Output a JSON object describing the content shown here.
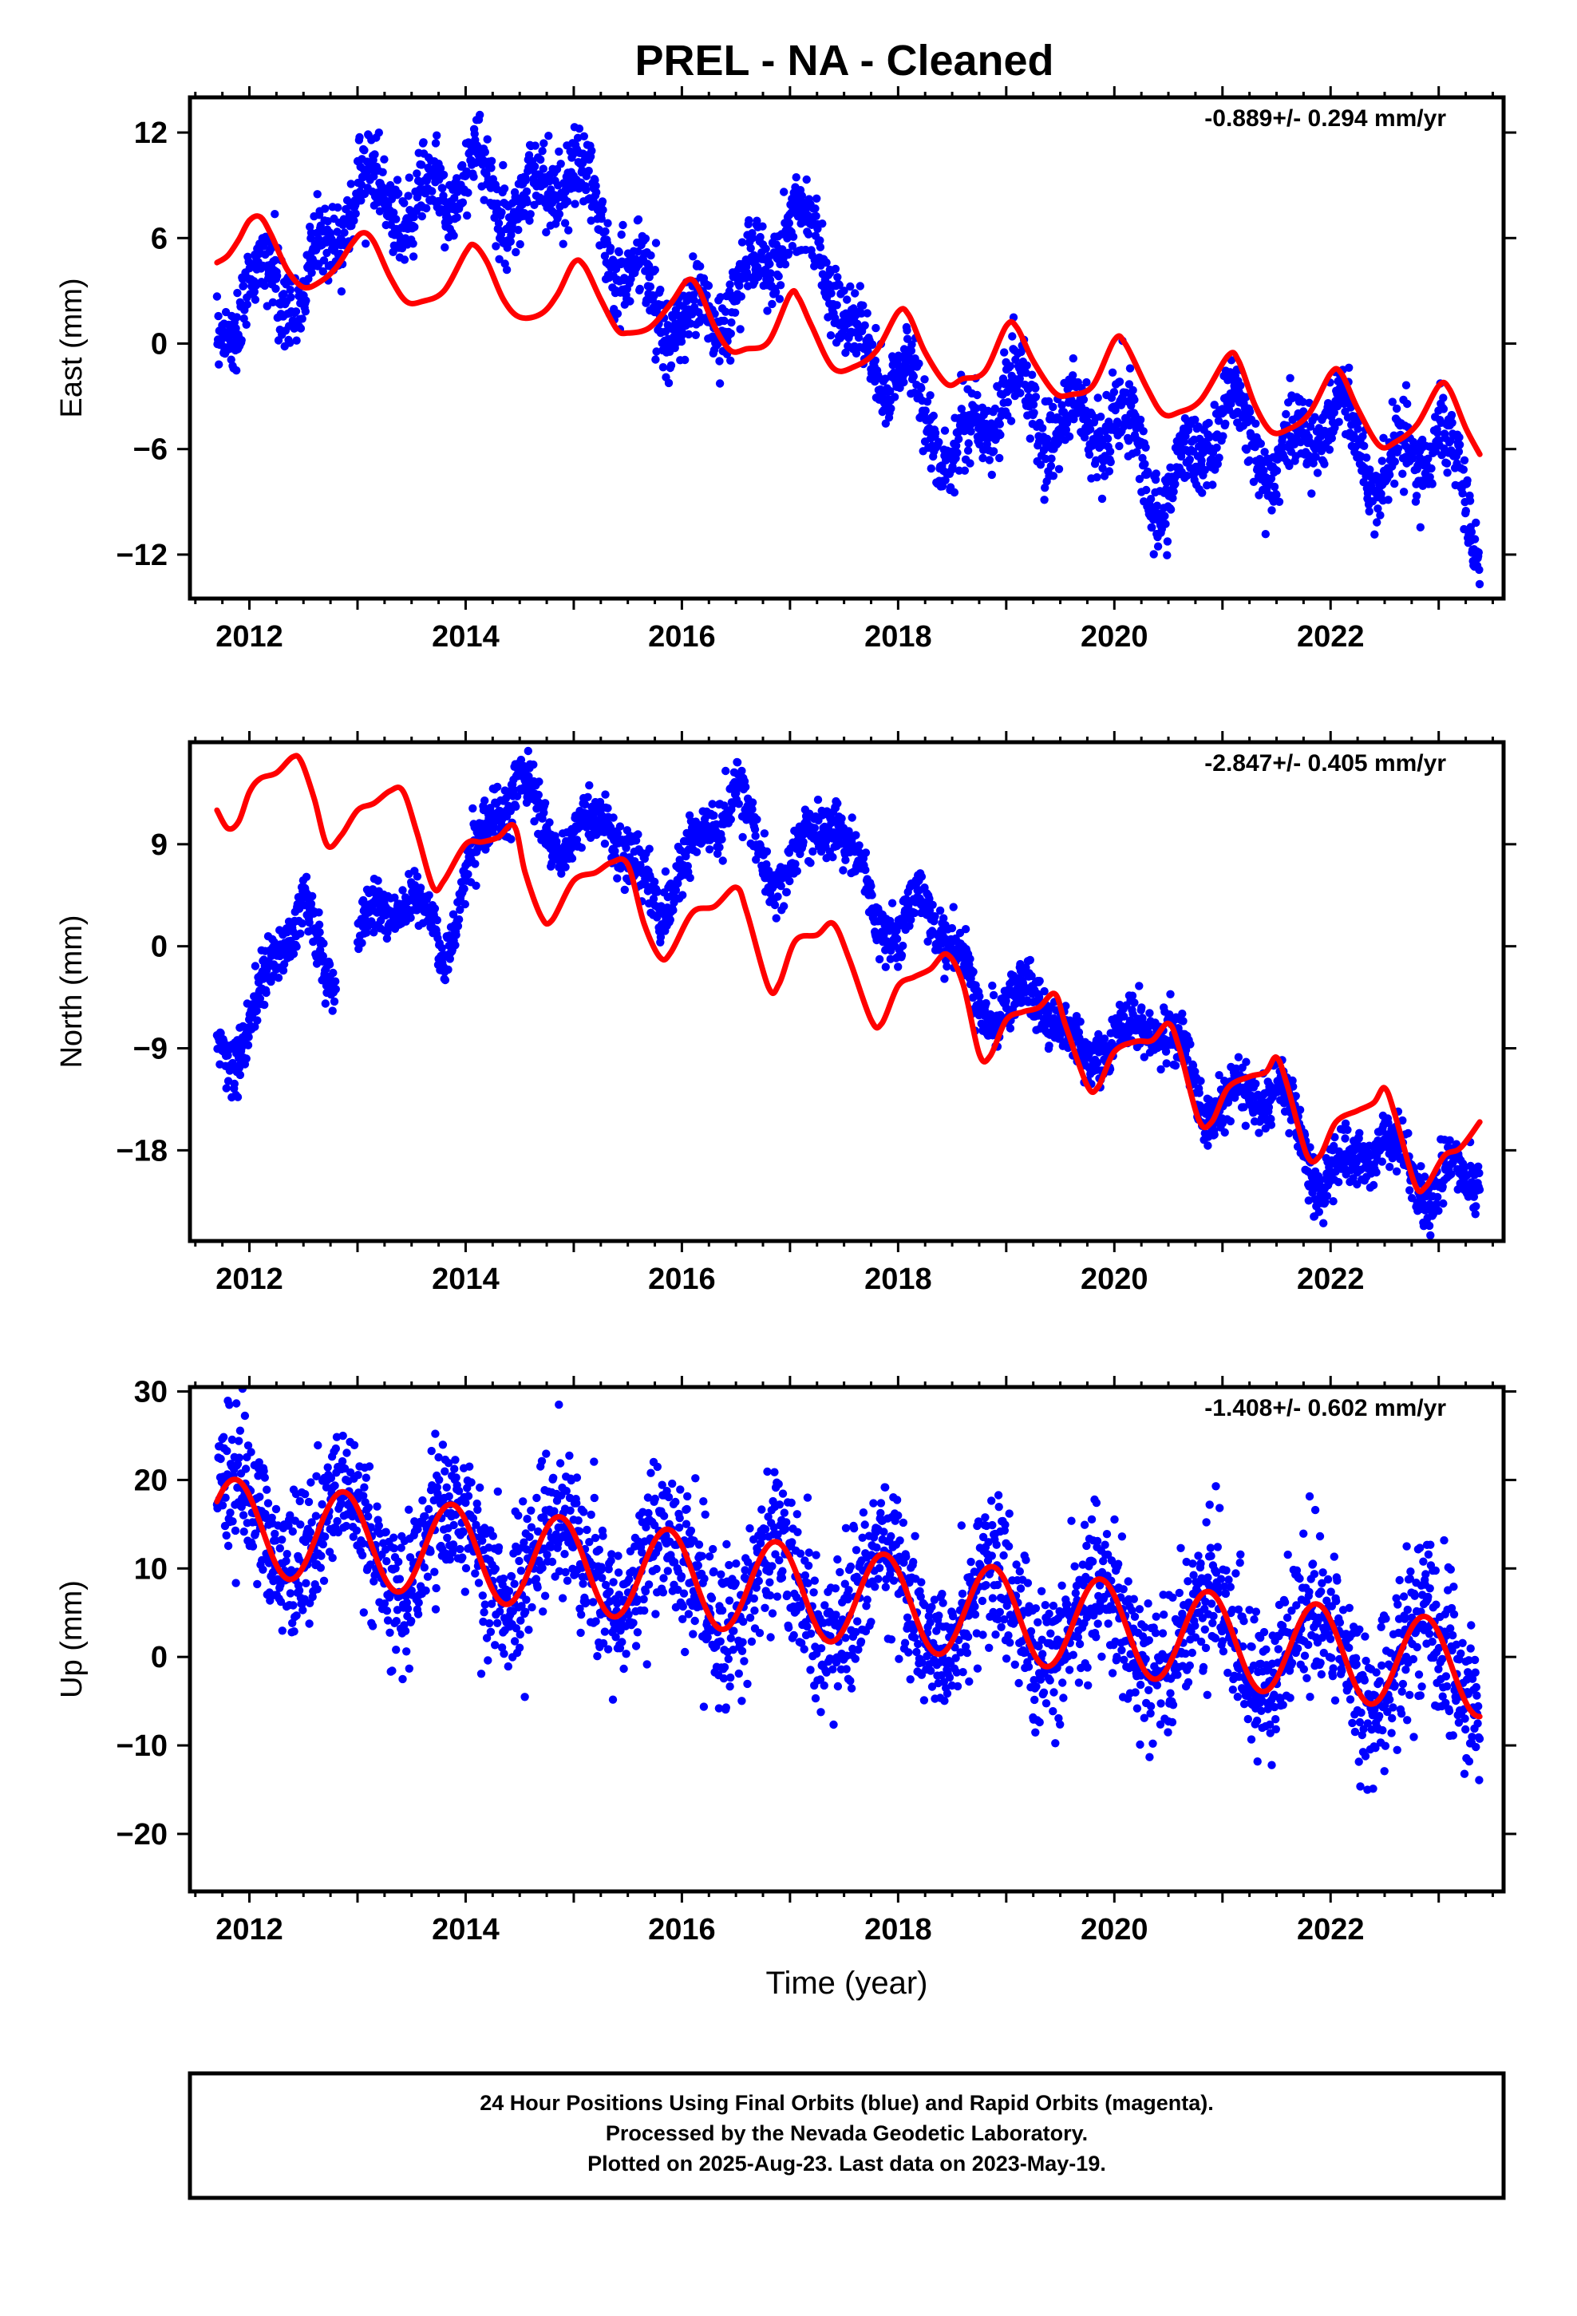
{
  "figure_title": "PREL  - NA - Cleaned",
  "colors": {
    "points": "#0000ff",
    "model": "#ff0000",
    "frame": "#000000"
  },
  "chart_data": [
    {
      "type": "scatter",
      "panel": "east",
      "ylabel": "East (mm)",
      "xlabel": "",
      "rate_label": "-0.889+/- 0.294 mm/yr",
      "xlim": [
        2011.45,
        2023.6
      ],
      "ylim": [
        -14.5,
        14
      ],
      "xticks": [
        2012,
        2014,
        2016,
        2018,
        2020,
        2022
      ],
      "yticks": [
        12,
        6,
        0,
        -6,
        -12
      ],
      "ytick_labels": [
        "12",
        "6",
        "0",
        "−6",
        "−12"
      ],
      "series": [
        {
          "kind": "observed",
          "x_start": 2011.7,
          "x_end": 2023.38,
          "trend_knots": [
            [
              2011.7,
              0.0
            ],
            [
              2012.0,
              3.5
            ],
            [
              2012.5,
              2.8
            ],
            [
              2013.0,
              9.0
            ],
            [
              2013.5,
              7.5
            ],
            [
              2014.0,
              9.8
            ],
            [
              2014.5,
              7.5
            ],
            [
              2015.0,
              10.0
            ],
            [
              2015.5,
              4.0
            ],
            [
              2016.0,
              1.0
            ],
            [
              2016.3,
              1.5
            ],
            [
              2016.6,
              3.5
            ],
            [
              2017.0,
              7.0
            ],
            [
              2017.3,
              5.5
            ],
            [
              2017.6,
              -0.5
            ],
            [
              2018.0,
              -1.5
            ],
            [
              2018.5,
              -6.5
            ],
            [
              2019.0,
              -2.5
            ],
            [
              2019.5,
              -5.0
            ],
            [
              2020.0,
              -4.0
            ],
            [
              2020.5,
              -9.0
            ],
            [
              2021.0,
              -3.5
            ],
            [
              2021.5,
              -7.0
            ],
            [
              2022.0,
              -3.5
            ],
            [
              2022.5,
              -7.5
            ],
            [
              2023.0,
              -5.0
            ],
            [
              2023.38,
              -11.5
            ]
          ],
          "seasonal_amplitude": 1.5,
          "noise": 1.1
        },
        {
          "kind": "model",
          "points": [
            [
              2011.7,
              4.6
            ],
            [
              2011.8,
              5.0
            ],
            [
              2011.9,
              5.9
            ],
            [
              2012.0,
              7.0
            ],
            [
              2012.1,
              7.2
            ],
            [
              2012.2,
              6.2
            ],
            [
              2012.35,
              4.2
            ],
            [
              2012.5,
              3.2
            ],
            [
              2012.65,
              3.5
            ],
            [
              2012.8,
              4.3
            ],
            [
              2012.95,
              5.7
            ],
            [
              2013.05,
              6.3
            ],
            [
              2013.15,
              5.8
            ],
            [
              2013.3,
              3.8
            ],
            [
              2013.45,
              2.4
            ],
            [
              2013.6,
              2.4
            ],
            [
              2013.8,
              3.0
            ],
            [
              2014.0,
              5.2
            ],
            [
              2014.08,
              5.6
            ],
            [
              2014.2,
              4.6
            ],
            [
              2014.35,
              2.5
            ],
            [
              2014.5,
              1.5
            ],
            [
              2014.7,
              1.7
            ],
            [
              2014.85,
              2.8
            ],
            [
              2015.0,
              4.6
            ],
            [
              2015.1,
              4.4
            ],
            [
              2015.25,
              2.5
            ],
            [
              2015.4,
              0.8
            ],
            [
              2015.5,
              0.6
            ],
            [
              2015.7,
              0.9
            ],
            [
              2015.9,
              2.3
            ],
            [
              2016.05,
              3.6
            ],
            [
              2016.15,
              3.2
            ],
            [
              2016.3,
              1.0
            ],
            [
              2016.45,
              -0.4
            ],
            [
              2016.6,
              -0.3
            ],
            [
              2016.8,
              0.1
            ],
            [
              2017.0,
              2.8
            ],
            [
              2017.08,
              2.6
            ],
            [
              2017.2,
              1.0
            ],
            [
              2017.4,
              -1.4
            ],
            [
              2017.6,
              -1.3
            ],
            [
              2017.8,
              -0.4
            ],
            [
              2018.0,
              1.8
            ],
            [
              2018.1,
              1.6
            ],
            [
              2018.25,
              -0.5
            ],
            [
              2018.45,
              -2.3
            ],
            [
              2018.6,
              -2.0
            ],
            [
              2018.8,
              -1.6
            ],
            [
              2019.0,
              1.0
            ],
            [
              2019.1,
              0.9
            ],
            [
              2019.25,
              -1.0
            ],
            [
              2019.45,
              -2.8
            ],
            [
              2019.6,
              -2.9
            ],
            [
              2019.8,
              -2.4
            ],
            [
              2020.0,
              0.2
            ],
            [
              2020.1,
              0.0
            ],
            [
              2020.3,
              -2.5
            ],
            [
              2020.45,
              -4.0
            ],
            [
              2020.6,
              -3.9
            ],
            [
              2020.8,
              -3.2
            ],
            [
              2021.05,
              -0.7
            ],
            [
              2021.15,
              -1.0
            ],
            [
              2021.3,
              -3.5
            ],
            [
              2021.45,
              -5.0
            ],
            [
              2021.6,
              -4.9
            ],
            [
              2021.8,
              -4.0
            ],
            [
              2022.0,
              -1.7
            ],
            [
              2022.1,
              -1.7
            ],
            [
              2022.25,
              -3.7
            ],
            [
              2022.45,
              -5.8
            ],
            [
              2022.6,
              -5.6
            ],
            [
              2022.8,
              -4.6
            ],
            [
              2023.0,
              -2.4
            ],
            [
              2023.1,
              -2.6
            ],
            [
              2023.25,
              -4.8
            ],
            [
              2023.38,
              -6.3
            ]
          ]
        }
      ]
    },
    {
      "type": "scatter",
      "panel": "north",
      "ylabel": "North (mm)",
      "xlabel": "",
      "rate_label": "-2.847+/- 0.405 mm/yr",
      "xlim": [
        2011.45,
        2023.6
      ],
      "ylim": [
        -26,
        18
      ],
      "xticks": [
        2012,
        2014,
        2016,
        2018,
        2020,
        2022
      ],
      "yticks": [
        9,
        0,
        -9,
        -18
      ],
      "ytick_labels": [
        "9",
        "0",
        "−9",
        "−18"
      ],
      "series": [
        {
          "kind": "observed",
          "x_start": 2011.7,
          "x_end": 2023.38,
          "gaps": [
            [
              2012.8,
              2013.0
            ]
          ],
          "trend_knots": [
            [
              2011.7,
              -9.0
            ],
            [
              2011.9,
              -9.0
            ],
            [
              2012.2,
              -2.0
            ],
            [
              2012.5,
              4.5
            ],
            [
              2012.75,
              -4.0
            ],
            [
              2013.0,
              1.0
            ],
            [
              2013.5,
              5.0
            ],
            [
              2013.8,
              -1.0
            ],
            [
              2014.0,
              7.0
            ],
            [
              2014.5,
              15.0
            ],
            [
              2014.8,
              9.0
            ],
            [
              2015.0,
              9.5
            ],
            [
              2015.3,
              11.5
            ],
            [
              2015.8,
              3.0
            ],
            [
              2016.0,
              7.0
            ],
            [
              2016.5,
              14.0
            ],
            [
              2016.8,
              6.0
            ],
            [
              2017.0,
              7.0
            ],
            [
              2017.4,
              12.0
            ],
            [
              2017.8,
              3.0
            ],
            [
              2018.0,
              0.5
            ],
            [
              2018.2,
              4.0
            ],
            [
              2018.5,
              0.0
            ],
            [
              2018.8,
              -6.0
            ],
            [
              2019.0,
              -5.5
            ],
            [
              2019.3,
              -4.0
            ],
            [
              2019.7,
              -10.0
            ],
            [
              2020.0,
              -8.0
            ],
            [
              2020.5,
              -7.0
            ],
            [
              2020.8,
              -13.5
            ],
            [
              2021.0,
              -14.0
            ],
            [
              2021.5,
              -12.0
            ],
            [
              2021.9,
              -21.0
            ],
            [
              2022.0,
              -20.0
            ],
            [
              2022.5,
              -17.0
            ],
            [
              2022.9,
              -22.0
            ],
            [
              2023.1,
              -20.0
            ],
            [
              2023.38,
              -20.5
            ]
          ],
          "seasonal_amplitude": 1.2,
          "noise": 1.2
        },
        {
          "kind": "model",
          "points": [
            [
              2011.7,
              12.0
            ],
            [
              2011.8,
              10.4
            ],
            [
              2011.9,
              11.0
            ],
            [
              2012.0,
              13.6
            ],
            [
              2012.1,
              14.8
            ],
            [
              2012.25,
              15.3
            ],
            [
              2012.4,
              16.7
            ],
            [
              2012.48,
              16.3
            ],
            [
              2012.6,
              13.0
            ],
            [
              2012.72,
              8.9
            ],
            [
              2012.85,
              9.8
            ],
            [
              2013.0,
              12.0
            ],
            [
              2013.15,
              12.6
            ],
            [
              2013.3,
              13.7
            ],
            [
              2013.42,
              13.7
            ],
            [
              2013.55,
              10.0
            ],
            [
              2013.7,
              5.2
            ],
            [
              2013.8,
              5.8
            ],
            [
              2014.0,
              9.0
            ],
            [
              2014.15,
              9.2
            ],
            [
              2014.3,
              9.6
            ],
            [
              2014.45,
              10.6
            ],
            [
              2014.55,
              6.5
            ],
            [
              2014.7,
              2.6
            ],
            [
              2014.8,
              2.3
            ],
            [
              2015.0,
              5.8
            ],
            [
              2015.2,
              6.5
            ],
            [
              2015.35,
              7.4
            ],
            [
              2015.5,
              7.2
            ],
            [
              2015.65,
              2.0
            ],
            [
              2015.8,
              -1.0
            ],
            [
              2015.9,
              -0.5
            ],
            [
              2016.1,
              3.0
            ],
            [
              2016.3,
              3.5
            ],
            [
              2016.5,
              5.2
            ],
            [
              2016.6,
              3.0
            ],
            [
              2016.8,
              -3.6
            ],
            [
              2016.9,
              -3.3
            ],
            [
              2017.05,
              0.5
            ],
            [
              2017.25,
              1.0
            ],
            [
              2017.4,
              2.0
            ],
            [
              2017.55,
              -1.2
            ],
            [
              2017.75,
              -6.5
            ],
            [
              2017.85,
              -6.8
            ],
            [
              2018.0,
              -3.5
            ],
            [
              2018.15,
              -2.7
            ],
            [
              2018.3,
              -2.0
            ],
            [
              2018.45,
              -0.7
            ],
            [
              2018.6,
              -3.3
            ],
            [
              2018.75,
              -9.5
            ],
            [
              2018.85,
              -9.7
            ],
            [
              2019.0,
              -6.5
            ],
            [
              2019.15,
              -5.8
            ],
            [
              2019.3,
              -5.4
            ],
            [
              2019.45,
              -4.2
            ],
            [
              2019.55,
              -7.0
            ],
            [
              2019.75,
              -12.3
            ],
            [
              2019.85,
              -12.4
            ],
            [
              2020.0,
              -9.3
            ],
            [
              2020.2,
              -8.4
            ],
            [
              2020.35,
              -8.3
            ],
            [
              2020.5,
              -6.8
            ],
            [
              2020.6,
              -9.0
            ],
            [
              2020.78,
              -15.3
            ],
            [
              2020.9,
              -15.5
            ],
            [
              2021.05,
              -12.5
            ],
            [
              2021.25,
              -11.5
            ],
            [
              2021.4,
              -11.1
            ],
            [
              2021.5,
              -9.8
            ],
            [
              2021.6,
              -12.3
            ],
            [
              2021.78,
              -18.4
            ],
            [
              2021.9,
              -18.5
            ],
            [
              2022.05,
              -15.5
            ],
            [
              2022.25,
              -14.5
            ],
            [
              2022.4,
              -13.8
            ],
            [
              2022.5,
              -12.5
            ],
            [
              2022.6,
              -15.0
            ],
            [
              2022.78,
              -21.0
            ],
            [
              2022.88,
              -21.2
            ],
            [
              2023.05,
              -18.5
            ],
            [
              2023.2,
              -17.8
            ],
            [
              2023.38,
              -15.5
            ]
          ]
        }
      ]
    },
    {
      "type": "scatter",
      "panel": "up",
      "ylabel": "Up (mm)",
      "xlabel": "Time (year)",
      "rate_label": "-1.408+/- 0.602 mm/yr",
      "xlim": [
        2011.45,
        2023.6
      ],
      "ylim": [
        -26.5,
        30.5
      ],
      "xticks": [
        2012,
        2014,
        2016,
        2018,
        2020,
        2022
      ],
      "yticks": [
        30,
        20,
        10,
        0,
        -10,
        -20
      ],
      "ytick_labels": [
        "30",
        "20",
        "10",
        "0",
        "−10",
        "−20"
      ],
      "series": [
        {
          "kind": "observed",
          "x_start": 2011.7,
          "x_end": 2023.38,
          "trend_knots": [
            [
              2011.7,
              14.0
            ],
            [
              2023.38,
              -14.0
            ]
          ],
          "sine": {
            "offset": 15.0,
            "slope": -1.408,
            "amplitude": 5.0,
            "phase": 0.17
          },
          "noise": 4.2
        },
        {
          "kind": "model",
          "sine": {
            "offset": 15.0,
            "slope": -1.408,
            "amplitude": 5.3,
            "phase": 0.17
          }
        }
      ]
    }
  ],
  "footer": {
    "line1": "24 Hour Positions Using Final Orbits (blue) and Rapid Orbits (magenta).",
    "line2": "Processed by the Nevada Geodetic Laboratory.",
    "line3": "Plotted on 2025-Aug-23. Last data on 2023-May-19."
  }
}
